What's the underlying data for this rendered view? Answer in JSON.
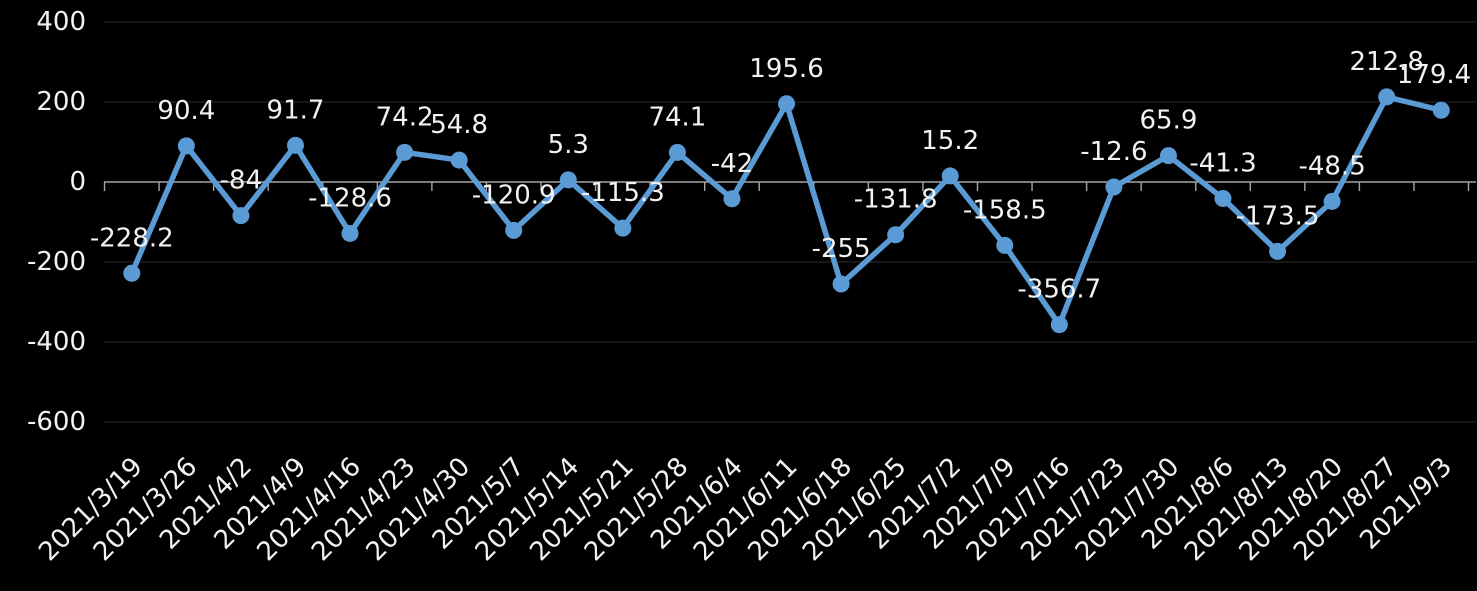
{
  "chart_data": {
    "type": "line",
    "title": "",
    "xlabel": "",
    "ylabel": "",
    "legend": "none",
    "grid": "horizontal",
    "x_label_rotation_deg": -45,
    "ylim": [
      -600,
      400
    ],
    "yticks": [
      400,
      200,
      0,
      -200,
      -400,
      -600
    ],
    "categories": [
      "2021/3/19",
      "2021/3/26",
      "2021/4/2",
      "2021/4/9",
      "2021/4/16",
      "2021/4/23",
      "2021/4/30",
      "2021/5/7",
      "2021/5/14",
      "2021/5/21",
      "2021/5/28",
      "2021/6/4",
      "2021/6/11",
      "2021/6/18",
      "2021/6/25",
      "2021/7/2",
      "2021/7/9",
      "2021/7/16",
      "2021/7/23",
      "2021/7/30",
      "2021/8/6",
      "2021/8/13",
      "2021/8/20",
      "2021/8/27",
      "2021/9/3"
    ],
    "series": [
      {
        "values": [
          -228.2,
          90.4,
          -84,
          91.7,
          -128.6,
          74.2,
          54.8,
          -120.9,
          5.3,
          -115.3,
          74.1,
          -42,
          195.6,
          -255,
          -131.8,
          15.2,
          -158.5,
          -356.7,
          -12.6,
          65.9,
          -41.3,
          -173.5,
          -48.5,
          212.8,
          179.4
        ]
      }
    ],
    "data_labels": [
      "-228.2",
      "90.4",
      "-84",
      "91.7",
      "-128.6",
      "74.2",
      "54.8",
      "-120.9",
      "5.3",
      "-115.3",
      "74.1",
      "-42",
      "195.6",
      "-255",
      "-131.8",
      "15.2",
      "-158.5",
      "-356.7",
      "-12.6",
      "65.9",
      "-41.3",
      "-173.5",
      "-48.5",
      "212.8",
      "179.4"
    ],
    "colors": {
      "background": "#000000",
      "series_line": "#5B9BD5",
      "marker_fill": "#5B9BD5",
      "gridline": "#2b2b2b",
      "axis_line": "#a6a6a6",
      "text": "#f2f2f2"
    }
  }
}
